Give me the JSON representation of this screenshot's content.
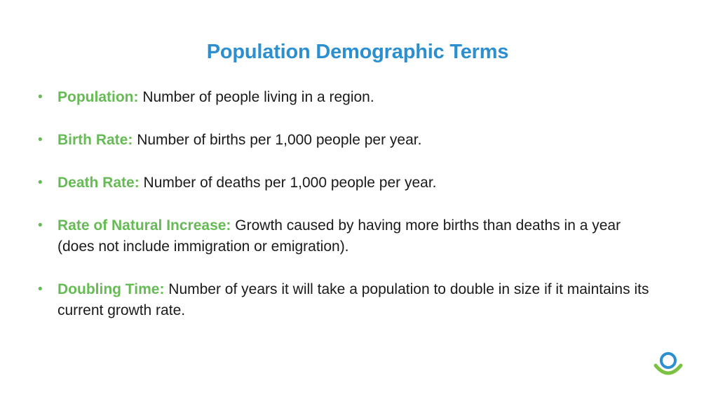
{
  "slide": {
    "title": "Population Demographic Terms",
    "bullet_marker": "•",
    "items": [
      {
        "term": "Population:",
        "definition": "Number of people living in a region."
      },
      {
        "term": "Birth Rate:",
        "definition": "Number of births per 1,000 people per year."
      },
      {
        "term": "Death Rate:",
        "definition": "Number of deaths per 1,000 people per year."
      },
      {
        "term": "Rate of Natural Increase:",
        "definition": "Growth caused by having more births than deaths in a year (does not include immigration or emigration)."
      },
      {
        "term": "Doubling Time:",
        "definition": "Number of years it will take a population to double in size if it maintains its current growth rate."
      }
    ]
  },
  "colors": {
    "title": "#2b8fd0",
    "term": "#66bb55",
    "logo_ring": "#2b8fd0",
    "logo_arc": "#7cc242"
  },
  "logo": {
    "icon": "circle-with-arc-logo"
  }
}
